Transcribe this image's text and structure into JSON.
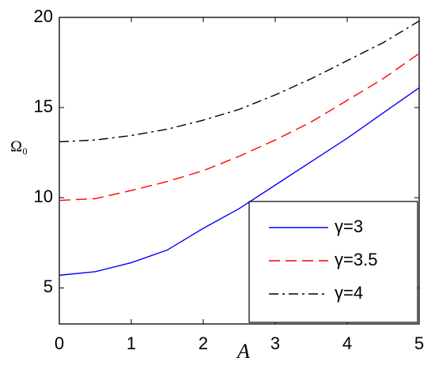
{
  "chart_data": {
    "type": "line",
    "xlabel": "A",
    "ylabel": "Ω₀",
    "x": [
      0,
      0.5,
      1,
      1.5,
      2,
      2.5,
      3,
      3.5,
      4,
      4.5,
      5
    ],
    "series": [
      {
        "name": "γ=3",
        "color": "#0000ff",
        "dash": "solid",
        "values": [
          5.7,
          5.9,
          6.4,
          7.1,
          8.3,
          9.4,
          10.7,
          12.0,
          13.3,
          14.7,
          16.1
        ]
      },
      {
        "name": "γ=3.5",
        "color": "#ff0000",
        "dash": "dashed",
        "values": [
          9.85,
          9.95,
          10.4,
          10.9,
          11.5,
          12.3,
          13.2,
          14.2,
          15.4,
          16.6,
          18.0
        ]
      },
      {
        "name": "γ=4",
        "color": "#000000",
        "dash": "dashdot",
        "values": [
          13.1,
          13.2,
          13.45,
          13.8,
          14.3,
          14.9,
          15.7,
          16.6,
          17.6,
          18.6,
          19.8
        ]
      }
    ],
    "xlim": [
      0,
      5
    ],
    "xticks": [
      0,
      1,
      2,
      3,
      4,
      5
    ],
    "ylim": [
      3,
      20
    ],
    "yticks": [
      5,
      10,
      15,
      20
    ],
    "grid": false,
    "legend": "lower right"
  }
}
